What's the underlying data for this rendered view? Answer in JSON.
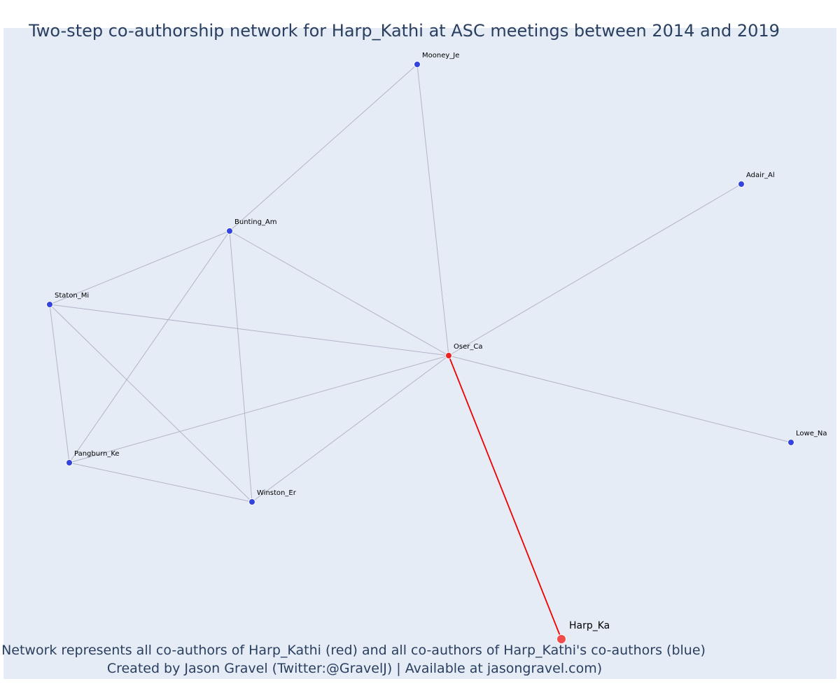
{
  "title": "Two-step co-authorship network for Harp_Kathi at ASC meetings between 2014 and 2019",
  "footer": {
    "line1": "Network represents all co-authors of Harp_Kathi (red) and all co-authors of Harp_Kathi's co-authors (blue)",
    "line2": "Created by Jason Gravel (Twitter:@GravelJ) | Available at jasongravel.com)"
  },
  "colors": {
    "background": "#e5ecf6",
    "edge": "#b4b4c8",
    "ego_edge": "#ee0000",
    "first_degree_node": "#ee2222",
    "second_degree_node": "#3344dd"
  },
  "nodes": [
    {
      "id": "Mooney_Je",
      "label": "Mooney_Je",
      "group": "coauthor_of_coauthor"
    },
    {
      "id": "Adair_Al",
      "label": "Adair_Al",
      "group": "coauthor_of_coauthor"
    },
    {
      "id": "Bunting_Am",
      "label": "Bunting_Am",
      "group": "coauthor_of_coauthor"
    },
    {
      "id": "Staton_Mi",
      "label": "Staton_Mi",
      "group": "coauthor_of_coauthor"
    },
    {
      "id": "Oser_Ca",
      "label": "Oser_Ca",
      "group": "coauthor"
    },
    {
      "id": "Lowe_Na",
      "label": "Lowe_Na",
      "group": "coauthor_of_coauthor"
    },
    {
      "id": "Pangburn_Ke",
      "label": "Pangburn_Ke",
      "group": "coauthor_of_coauthor"
    },
    {
      "id": "Winston_Er",
      "label": "Winston_Er",
      "group": "coauthor_of_coauthor"
    },
    {
      "id": "Harp_Ka",
      "label": "Harp_Ka",
      "group": "ego"
    }
  ],
  "edges": [
    {
      "source": "Harp_Ka",
      "target": "Oser_Ca",
      "type": "ego"
    },
    {
      "source": "Oser_Ca",
      "target": "Mooney_Je",
      "type": "normal"
    },
    {
      "source": "Oser_Ca",
      "target": "Adair_Al",
      "type": "normal"
    },
    {
      "source": "Oser_Ca",
      "target": "Bunting_Am",
      "type": "normal"
    },
    {
      "source": "Oser_Ca",
      "target": "Staton_Mi",
      "type": "normal"
    },
    {
      "source": "Oser_Ca",
      "target": "Lowe_Na",
      "type": "normal"
    },
    {
      "source": "Oser_Ca",
      "target": "Pangburn_Ke",
      "type": "normal"
    },
    {
      "source": "Oser_Ca",
      "target": "Winston_Er",
      "type": "normal"
    },
    {
      "source": "Mooney_Je",
      "target": "Bunting_Am",
      "type": "normal"
    },
    {
      "source": "Bunting_Am",
      "target": "Staton_Mi",
      "type": "normal"
    },
    {
      "source": "Bunting_Am",
      "target": "Pangburn_Ke",
      "type": "normal"
    },
    {
      "source": "Bunting_Am",
      "target": "Winston_Er",
      "type": "normal"
    },
    {
      "source": "Staton_Mi",
      "target": "Pangburn_Ke",
      "type": "normal"
    },
    {
      "source": "Staton_Mi",
      "target": "Winston_Er",
      "type": "normal"
    },
    {
      "source": "Pangburn_Ke",
      "target": "Winston_Er",
      "type": "normal"
    }
  ]
}
